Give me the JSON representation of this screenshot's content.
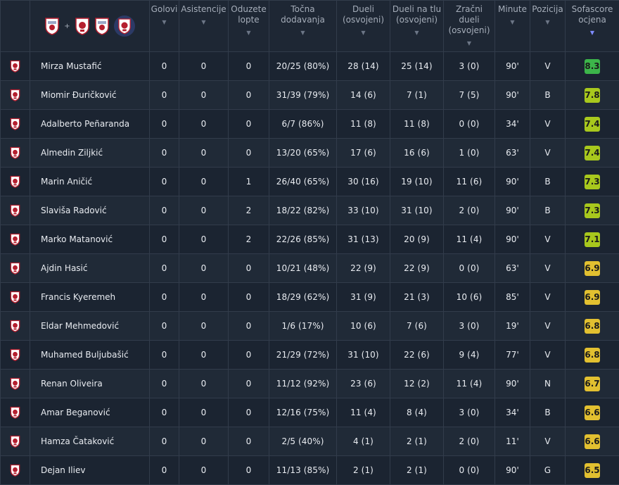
{
  "header": {
    "filter_plus": "+",
    "columns": [
      {
        "key": "goals",
        "label": "Golovi"
      },
      {
        "key": "assists",
        "label": "Asistencije"
      },
      {
        "key": "tackles",
        "label": "Oduzete\nlopte"
      },
      {
        "key": "passes",
        "label": "Točna\ndodavanja"
      },
      {
        "key": "duels",
        "label": "Dueli\n(osvojeni)"
      },
      {
        "key": "ground",
        "label": "Dueli na tlu\n(osvojeni)"
      },
      {
        "key": "aerial",
        "label": "Zračni\ndueli\n(osvojeni)"
      },
      {
        "key": "minutes",
        "label": "Minute"
      },
      {
        "key": "position",
        "label": "Pozicija"
      },
      {
        "key": "rating",
        "label": "Sofascore\nocjena"
      }
    ],
    "sort_icon": "triangle-down-icon"
  },
  "colors": {
    "rating_high": "#3cb54a",
    "rating_good": "#a8c81d",
    "rating_mid": "#e2c030",
    "crest_red": "#b51f2f",
    "crest_white": "#ffffff",
    "crest_alt": "#9aa7c7"
  },
  "players": [
    {
      "name": "Mirza Mustafić",
      "goals": "0",
      "assists": "0",
      "tackles": "0",
      "passes": "20/25 (80%)",
      "duels": "28 (14)",
      "ground": "25 (14)",
      "aerial": "3 (0)",
      "minutes": "90'",
      "position": "V",
      "rating": "8.3",
      "tier": "high"
    },
    {
      "name": "Miomir Đuričković",
      "goals": "0",
      "assists": "0",
      "tackles": "0",
      "passes": "31/39 (79%)",
      "duels": "14 (6)",
      "ground": "7 (1)",
      "aerial": "7 (5)",
      "minutes": "90'",
      "position": "B",
      "rating": "7.8",
      "tier": "good"
    },
    {
      "name": "Adalberto Peñaranda",
      "goals": "0",
      "assists": "0",
      "tackles": "0",
      "passes": "6/7 (86%)",
      "duels": "11 (8)",
      "ground": "11 (8)",
      "aerial": "0 (0)",
      "minutes": "34'",
      "position": "V",
      "rating": "7.4",
      "tier": "good"
    },
    {
      "name": "Almedin Ziljkić",
      "goals": "0",
      "assists": "0",
      "tackles": "0",
      "passes": "13/20 (65%)",
      "duels": "17 (6)",
      "ground": "16 (6)",
      "aerial": "1 (0)",
      "minutes": "63'",
      "position": "V",
      "rating": "7.4",
      "tier": "good"
    },
    {
      "name": "Marin Aničić",
      "goals": "0",
      "assists": "0",
      "tackles": "1",
      "passes": "26/40 (65%)",
      "duels": "30 (16)",
      "ground": "19 (10)",
      "aerial": "11 (6)",
      "minutes": "90'",
      "position": "B",
      "rating": "7.3",
      "tier": "good"
    },
    {
      "name": "Slaviša Radović",
      "goals": "0",
      "assists": "0",
      "tackles": "2",
      "passes": "18/22 (82%)",
      "duels": "33 (10)",
      "ground": "31 (10)",
      "aerial": "2 (0)",
      "minutes": "90'",
      "position": "B",
      "rating": "7.3",
      "tier": "good"
    },
    {
      "name": "Marko Matanović",
      "goals": "0",
      "assists": "0",
      "tackles": "2",
      "passes": "22/26 (85%)",
      "duels": "31 (13)",
      "ground": "20 (9)",
      "aerial": "11 (4)",
      "minutes": "90'",
      "position": "V",
      "rating": "7.1",
      "tier": "good"
    },
    {
      "name": "Ajdin Hasić",
      "goals": "0",
      "assists": "0",
      "tackles": "0",
      "passes": "10/21 (48%)",
      "duels": "22 (9)",
      "ground": "22 (9)",
      "aerial": "0 (0)",
      "minutes": "63'",
      "position": "V",
      "rating": "6.9",
      "tier": "mid"
    },
    {
      "name": "Francis Kyeremeh",
      "goals": "0",
      "assists": "0",
      "tackles": "0",
      "passes": "18/29 (62%)",
      "duels": "31 (9)",
      "ground": "21 (3)",
      "aerial": "10 (6)",
      "minutes": "85'",
      "position": "V",
      "rating": "6.9",
      "tier": "mid"
    },
    {
      "name": "Eldar Mehmedović",
      "goals": "0",
      "assists": "0",
      "tackles": "0",
      "passes": "1/6 (17%)",
      "duels": "10 (6)",
      "ground": "7 (6)",
      "aerial": "3 (0)",
      "minutes": "19'",
      "position": "V",
      "rating": "6.8",
      "tier": "mid"
    },
    {
      "name": "Muhamed Buljubašić",
      "goals": "0",
      "assists": "0",
      "tackles": "0",
      "passes": "21/29 (72%)",
      "duels": "31 (10)",
      "ground": "22 (6)",
      "aerial": "9 (4)",
      "minutes": "77'",
      "position": "V",
      "rating": "6.8",
      "tier": "mid"
    },
    {
      "name": "Renan Oliveira",
      "goals": "0",
      "assists": "0",
      "tackles": "0",
      "passes": "11/12 (92%)",
      "duels": "23 (6)",
      "ground": "12 (2)",
      "aerial": "11 (4)",
      "minutes": "90'",
      "position": "N",
      "rating": "6.7",
      "tier": "mid"
    },
    {
      "name": "Amar Beganović",
      "goals": "0",
      "assists": "0",
      "tackles": "0",
      "passes": "12/16 (75%)",
      "duels": "11 (4)",
      "ground": "8 (4)",
      "aerial": "3 (0)",
      "minutes": "34'",
      "position": "B",
      "rating": "6.6",
      "tier": "mid"
    },
    {
      "name": "Hamza Čataković",
      "goals": "0",
      "assists": "0",
      "tackles": "0",
      "passes": "2/5 (40%)",
      "duels": "4 (1)",
      "ground": "2 (1)",
      "aerial": "2 (0)",
      "minutes": "11'",
      "position": "V",
      "rating": "6.6",
      "tier": "mid"
    },
    {
      "name": "Dejan Iliev",
      "goals": "0",
      "assists": "0",
      "tackles": "0",
      "passes": "11/13 (85%)",
      "duels": "2 (1)",
      "ground": "2 (1)",
      "aerial": "0 (0)",
      "minutes": "90'",
      "position": "G",
      "rating": "6.5",
      "tier": "mid"
    }
  ]
}
